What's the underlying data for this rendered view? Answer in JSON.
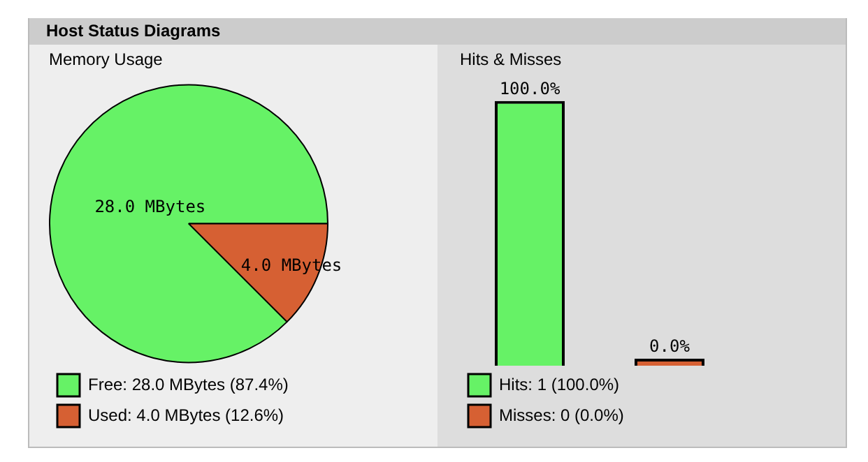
{
  "chart_data": [
    {
      "type": "pie",
      "title": "Memory Usage",
      "annotations": [
        "Host Status Diagrams"
      ],
      "categories": [
        "Free: 28.0 MBytes (87.4%)",
        "Used: 4.0 MBytes (12.6%)"
      ],
      "values": [
        28.0,
        4.0
      ],
      "colors": [
        "#66f266",
        "#d66033"
      ],
      "value_labels": [
        "28.0 MBytes",
        "4.0 MBytes"
      ],
      "legend": "bottom left"
    },
    {
      "type": "bar",
      "title": "Hits & Misses",
      "categories": [
        null,
        null
      ],
      "series": [
        {
          "name": "Hits: 1 (100.0%)",
          "color": "#66f266",
          "values": [
            100.0,
            null
          ],
          "value_labels": [
            "100.0%",
            null
          ]
        },
        {
          "name": "Misses: 0 (0.0%)",
          "color": "#d66033",
          "values": [
            null,
            0.0
          ],
          "value_labels": [
            null,
            "0.0%"
          ]
        }
      ],
      "stacked": true,
      "legend": "bottom left",
      "tick_labels": false
    }
  ]
}
